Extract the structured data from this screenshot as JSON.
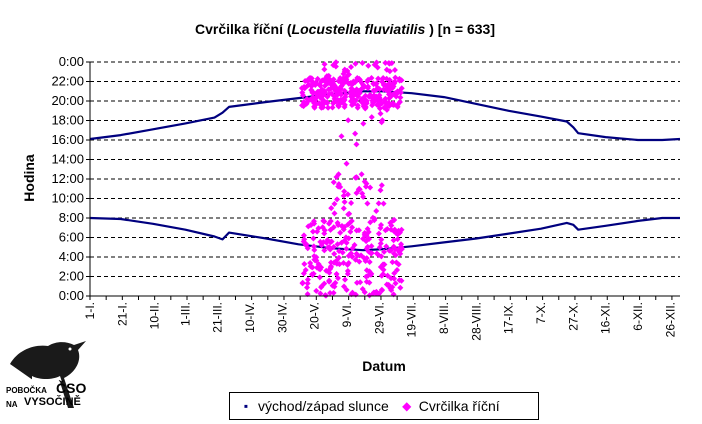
{
  "chart_data": {
    "type": "scatter",
    "title_prefix": "Cvrčilka říční (",
    "title_species": "Locustella fluviatilis",
    "title_suffix": " ) [n = 633]",
    "xlabel": "Datum",
    "ylabel": "Hodina",
    "ylim": [
      0,
      24
    ],
    "y_ticks": [
      "0:00",
      "2:00",
      "4:00",
      "6:00",
      "8:00",
      "10:00",
      "12:00",
      "14:00",
      "16:00",
      "18:00",
      "20:00",
      "22:00",
      "0:00"
    ],
    "x_tick_labels": [
      "1-I.",
      "21-I.",
      "10-II.",
      "1-III.",
      "21-III.",
      "10-IV.",
      "30-IV.",
      "20-V.",
      "9-VI.",
      "29-VI.",
      "19-VII.",
      "8-VIII.",
      "28-VIII.",
      "17-IX.",
      "7-X.",
      "27-X.",
      "16-XI.",
      "6-XII.",
      "26-XII."
    ],
    "x_tick_days": [
      1,
      21,
      41,
      60,
      80,
      100,
      120,
      140,
      160,
      180,
      200,
      220,
      240,
      260,
      280,
      300,
      320,
      340,
      360
    ],
    "xlim": [
      1,
      366
    ],
    "grid": "horizontal dashed",
    "legend_position": "bottom",
    "series": [
      {
        "name": "východ/západ slunce",
        "kind": "line",
        "color": "#00007f",
        "sunset": [
          [
            1,
            16.1
          ],
          [
            20,
            16.5
          ],
          [
            40,
            17.1
          ],
          [
            60,
            17.7
          ],
          [
            78,
            18.3
          ],
          [
            83,
            18.8
          ],
          [
            87,
            19.4
          ],
          [
            110,
            19.9
          ],
          [
            130,
            20.3
          ],
          [
            150,
            20.7
          ],
          [
            170,
            21.0
          ],
          [
            182,
            21.0
          ],
          [
            200,
            20.8
          ],
          [
            220,
            20.4
          ],
          [
            240,
            19.7
          ],
          [
            260,
            19.0
          ],
          [
            280,
            18.4
          ],
          [
            296,
            17.9
          ],
          [
            300,
            17.3
          ],
          [
            303,
            16.7
          ],
          [
            320,
            16.3
          ],
          [
            340,
            16.0
          ],
          [
            355,
            16.0
          ],
          [
            366,
            16.1
          ]
        ],
        "sunrise": [
          [
            1,
            8.0
          ],
          [
            20,
            7.9
          ],
          [
            40,
            7.4
          ],
          [
            60,
            6.8
          ],
          [
            78,
            6.1
          ],
          [
            83,
            5.8
          ],
          [
            87,
            6.5
          ],
          [
            110,
            5.9
          ],
          [
            130,
            5.3
          ],
          [
            150,
            4.9
          ],
          [
            170,
            4.7
          ],
          [
            182,
            4.8
          ],
          [
            200,
            5.1
          ],
          [
            220,
            5.5
          ],
          [
            240,
            5.9
          ],
          [
            260,
            6.4
          ],
          [
            280,
            6.9
          ],
          [
            296,
            7.5
          ],
          [
            300,
            7.3
          ],
          [
            303,
            6.8
          ],
          [
            320,
            7.2
          ],
          [
            340,
            7.7
          ],
          [
            355,
            8.0
          ],
          [
            366,
            8.0
          ]
        ]
      },
      {
        "name": "Cvrčilka říční",
        "kind": "scatter",
        "color": "#ff00ff",
        "clusters": [
          {
            "day_range": [
              132,
              194
            ],
            "hour_range": [
              19.3,
              22.4
            ],
            "count": 300
          },
          {
            "day_range": [
              132,
              194
            ],
            "hour_range": [
              0.0,
              7.8
            ],
            "count": 250
          },
          {
            "day_range": [
              145,
              190
            ],
            "hour_range": [
              22.4,
              24.0
            ],
            "count": 30
          },
          {
            "day_range": [
              150,
              185
            ],
            "hour_range": [
              7.8,
              12.5
            ],
            "count": 40
          },
          {
            "day_range": [
              155,
              170
            ],
            "hour_range": [
              13.5,
              17.0
            ],
            "count": 4
          },
          {
            "day_range": [
              160,
              185
            ],
            "hour_range": [
              17.5,
              19.3
            ],
            "count": 9
          }
        ]
      }
    ]
  },
  "legend": {
    "line_label": "východ/západ slunce",
    "scatter_label": "Cvrčilka říční"
  },
  "logo": {
    "line1": "POBOČKA",
    "line2": "ČSO",
    "line3": "NA",
    "line4": "VYSOČINĚ"
  }
}
